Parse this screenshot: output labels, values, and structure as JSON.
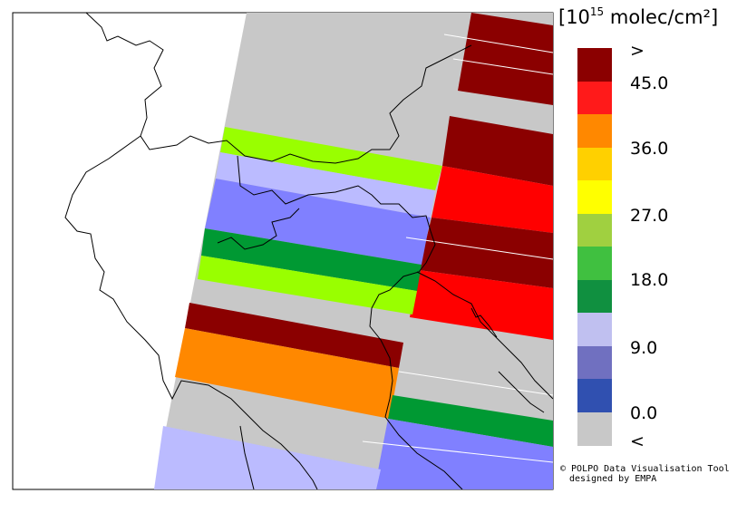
{
  "legend": {
    "unit_prefix": "[10",
    "unit_exponent": "15",
    "unit_suffix": " molec/cm²]",
    "labels": [
      ">",
      "45.0",
      "36.0",
      "27.0",
      "18.0",
      "9.0",
      "0.0",
      "<"
    ],
    "swatches": [
      "#8b0000",
      "#ff1a1a",
      "#ff8800",
      "#ffd000",
      "#ffff00",
      "#a0d040",
      "#40c040",
      "#109040",
      "#c0c0f0",
      "#7070c0",
      "#3050b0",
      "#c8c8c8"
    ]
  },
  "credit": {
    "line1": "© POLPO Data Visualisation Tool",
    "line2": "designed by EMPA"
  },
  "colors": {
    "no_data": "#c8c8c8",
    "dark_red": "#8b0000",
    "red": "#ff0000",
    "orange": "#ff8800",
    "lime": "#99ff00",
    "green": "#009933",
    "lavender": "#bbbbff",
    "blue_violet": "#8080ff"
  }
}
